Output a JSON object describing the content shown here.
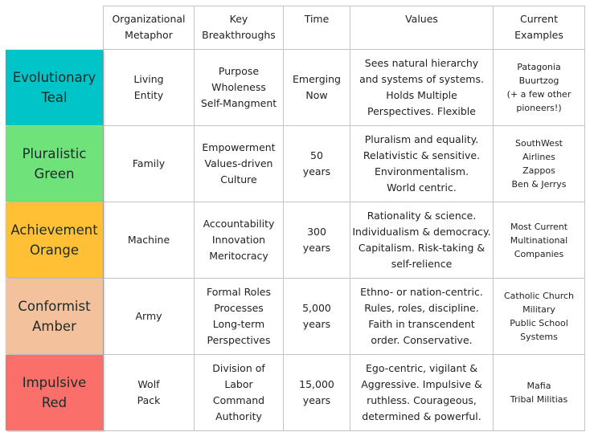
{
  "headers": [
    "Organizational\nMetaphor",
    "Key\nBreakthroughs",
    "Time",
    "Values",
    "Current\nExamples"
  ],
  "rows": [
    {
      "label": "Evolutionary\nTeal",
      "color": "#00c4c8",
      "metaphor": "Living\nEntity",
      "breakthroughs": "Purpose\nWholeness\nSelf-Mangment",
      "time": "Emerging\nNow",
      "values": "Sees natural hierarchy\nand systems of systems.\nHolds Multiple\nPerspectives. Flexible",
      "examples": "Patagonia\nBuurtzog\n(+ a few other\npioneers!)"
    },
    {
      "label": "Pluralistic\nGreen",
      "color": "#6fe27a",
      "metaphor": "Family",
      "breakthroughs": "Empowerment\nValues-driven\nCulture",
      "time": "50\nyears",
      "values": "Pluralism and equality.\nRelativistic & sensitive.\nEnvironmentalism.\nWorld centric.",
      "examples": "SouthWest\nAirlines\nZappos\nBen & Jerrys"
    },
    {
      "label": "Achievement\nOrange",
      "color": "#ffc035",
      "metaphor": "Machine",
      "breakthroughs": "Accountability\nInnovation\nMeritocracy",
      "time": "300\nyears",
      "values": "Rationality & science.\nIndividualism & democracy.\nCapitalism. Risk-taking &\nself-relience",
      "examples": "Most Current\nMultinational\nCompanies"
    },
    {
      "label": "Conformist\nAmber",
      "color": "#f4c19d",
      "metaphor": "Army",
      "breakthroughs": "Formal Roles\nProcesses\nLong-term\nPerspectives",
      "time": "5,000\nyears",
      "values": "Ethno- or nation-centric.\nRules, roles, discipline.\nFaith in transcendent\norder. Conservative.",
      "examples": "Catholic Church\nMilitary\nPublic School\nSystems"
    },
    {
      "label": "Impulsive\nRed",
      "color": "#fa6f69",
      "metaphor": "Wolf\nPack",
      "breakthroughs": "Division of\nLabor\nCommand\nAuthority",
      "time": "15,000\nyears",
      "values": "Ego-centric, vigilant &\nAggressive. Impulsive &\nruthless. Courageous,\ndetermined & powerful.",
      "examples": "Mafia\nTribal Militias"
    }
  ]
}
